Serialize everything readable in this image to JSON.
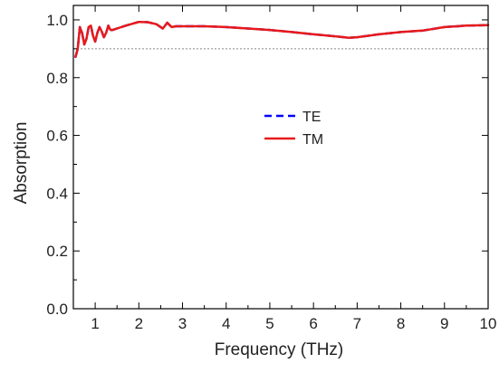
{
  "chart_data": {
    "type": "line",
    "title": "",
    "xlabel": "Frequency (THz)",
    "ylabel": "Absorption",
    "xlim": [
      0.5,
      10
    ],
    "ylim": [
      0.0,
      1.05
    ],
    "x_ticks": [
      1,
      2,
      3,
      4,
      5,
      6,
      7,
      8,
      9,
      10
    ],
    "y_ticks": [
      0.0,
      0.2,
      0.4,
      0.6,
      0.8,
      1.0
    ],
    "x_tick_labels": [
      "1",
      "2",
      "3",
      "4",
      "5",
      "6",
      "7",
      "8",
      "9",
      "10"
    ],
    "y_tick_labels": [
      "0.0",
      "0.2",
      "0.4",
      "0.6",
      "0.8",
      "1.0"
    ],
    "grid": false,
    "legend": {
      "placement": "center"
    },
    "reference_line": {
      "y": 0.9,
      "style": "dotted",
      "color": "#888888"
    },
    "x": [
      0.55,
      0.6,
      0.65,
      0.7,
      0.75,
      0.8,
      0.85,
      0.9,
      0.95,
      1.0,
      1.05,
      1.1,
      1.15,
      1.2,
      1.25,
      1.3,
      1.35,
      1.4,
      1.5,
      1.7,
      2.0,
      2.2,
      2.4,
      2.55,
      2.65,
      2.75,
      2.85,
      3.0,
      3.5,
      4.0,
      4.5,
      5.0,
      5.5,
      6.0,
      6.5,
      6.8,
      7.0,
      7.5,
      8.0,
      8.5,
      9.0,
      9.5,
      10.0
    ],
    "series": [
      {
        "name": "TE",
        "color": "#0000ff",
        "style": "dashed",
        "values": [
          0.872,
          0.9,
          0.975,
          0.955,
          0.915,
          0.935,
          0.975,
          0.98,
          0.945,
          0.925,
          0.955,
          0.975,
          0.96,
          0.94,
          0.955,
          0.98,
          0.965,
          0.965,
          0.97,
          0.98,
          0.993,
          0.992,
          0.985,
          0.97,
          0.99,
          0.975,
          0.978,
          0.978,
          0.978,
          0.975,
          0.97,
          0.965,
          0.958,
          0.95,
          0.943,
          0.938,
          0.94,
          0.95,
          0.958,
          0.963,
          0.975,
          0.98,
          0.982
        ]
      },
      {
        "name": "TM",
        "color": "#e81a1a",
        "style": "solid",
        "values": [
          0.872,
          0.9,
          0.975,
          0.955,
          0.915,
          0.935,
          0.975,
          0.98,
          0.945,
          0.925,
          0.955,
          0.975,
          0.96,
          0.94,
          0.955,
          0.98,
          0.965,
          0.965,
          0.97,
          0.98,
          0.993,
          0.992,
          0.985,
          0.97,
          0.99,
          0.975,
          0.978,
          0.978,
          0.978,
          0.975,
          0.97,
          0.965,
          0.958,
          0.95,
          0.943,
          0.938,
          0.94,
          0.95,
          0.958,
          0.963,
          0.975,
          0.98,
          0.982
        ]
      }
    ]
  }
}
